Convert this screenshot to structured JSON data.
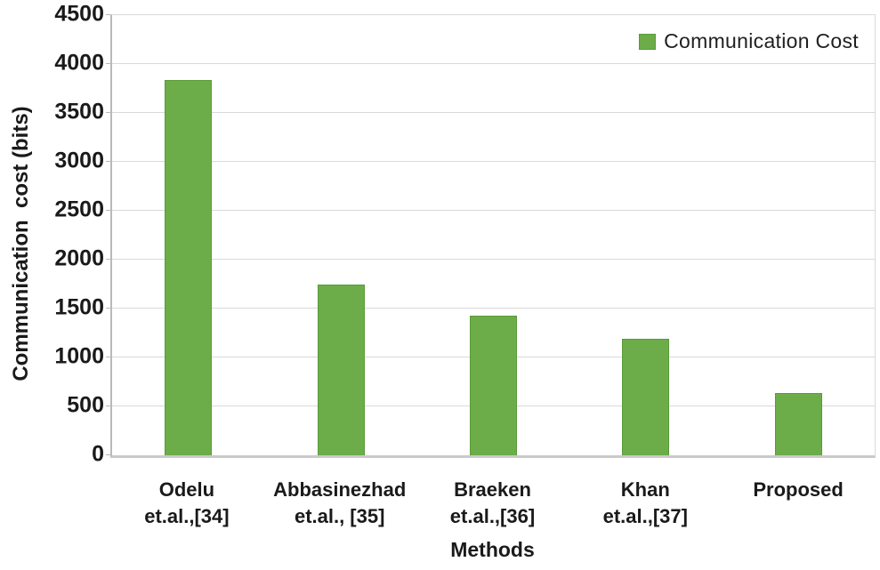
{
  "figure": {
    "background": "#ffffff"
  },
  "chart_data": {
    "type": "bar",
    "title": "",
    "xlabel": "Methods",
    "ylabel": "Communication  cost (bits)",
    "legend": {
      "label": "Communication Cost",
      "position": "top-right-inside"
    },
    "categories": [
      "Odelu\net.al.,[34]",
      "Abbasinezhad\net.al., [35]",
      "Braeken\net.al.,[36]",
      "Khan\net.al.,[37]",
      "Proposed"
    ],
    "values": [
      3840,
      1750,
      1430,
      1190,
      640
    ],
    "ylim": [
      0,
      4500
    ],
    "ytick_step": 500,
    "yticks": [
      0,
      500,
      1000,
      1500,
      2000,
      2500,
      3000,
      3500,
      4000,
      4500
    ],
    "grid": true,
    "colors": {
      "bar": "#6cad49",
      "bar_border": "#5a9a39",
      "gridline": "#d9d9d9",
      "axis": "#b9b9b9",
      "text": "#1a1a1a"
    }
  }
}
